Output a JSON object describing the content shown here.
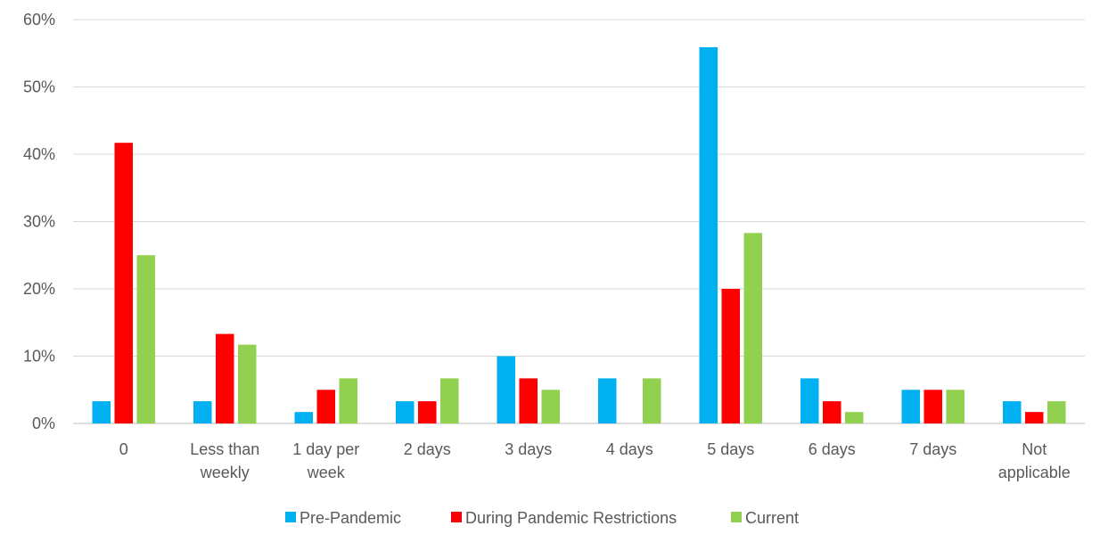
{
  "chart_data": {
    "type": "bar",
    "title": "",
    "xlabel": "",
    "ylabel": "",
    "ylim": [
      0,
      60
    ],
    "y_ticks": [
      "0%",
      "10%",
      "20%",
      "30%",
      "40%",
      "50%",
      "60%"
    ],
    "y_tick_values": [
      0,
      10,
      20,
      30,
      40,
      50,
      60
    ],
    "grid": true,
    "legend_position": "bottom",
    "categories": [
      [
        "0"
      ],
      [
        "Less than",
        "weekly"
      ],
      [
        "1 day per",
        "week"
      ],
      [
        "2 days"
      ],
      [
        "3 days"
      ],
      [
        "4 days"
      ],
      [
        "5 days"
      ],
      [
        "6 days"
      ],
      [
        "7 days"
      ],
      [
        "Not",
        "applicable"
      ]
    ],
    "series": [
      {
        "name": "Pre-Pandemic",
        "color": "#00b0f0",
        "values": [
          3.3,
          3.3,
          1.7,
          3.3,
          10.0,
          6.7,
          55.9,
          6.7,
          5.0,
          3.3
        ]
      },
      {
        "name": "During Pandemic Restrictions",
        "color": "#ff0000",
        "values": [
          41.7,
          13.3,
          5.0,
          3.3,
          6.7,
          0,
          20.0,
          3.3,
          5.0,
          1.7
        ]
      },
      {
        "name": "Current",
        "color": "#92d050",
        "values": [
          25.0,
          11.7,
          6.7,
          6.7,
          5.0,
          6.7,
          28.3,
          1.7,
          5.0,
          3.3
        ]
      }
    ]
  }
}
